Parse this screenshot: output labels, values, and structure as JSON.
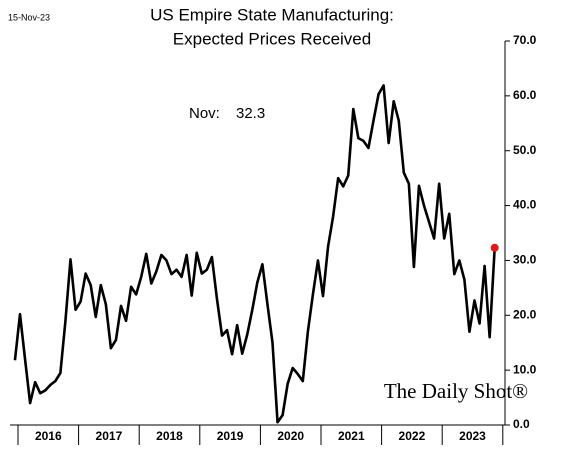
{
  "chart_data": {
    "type": "line",
    "title": "US Empire State Manufacturing:",
    "subtitle": "Expected Prices Received",
    "date_label": "15-Nov-23",
    "watermark": "The Daily Shot®",
    "annotation": {
      "text": "Nov:",
      "value": 32.3
    },
    "x": [
      "2015-12",
      "2016-01",
      "2016-02",
      "2016-03",
      "2016-04",
      "2016-05",
      "2016-06",
      "2016-07",
      "2016-08",
      "2016-09",
      "2016-10",
      "2016-11",
      "2016-12",
      "2017-01",
      "2017-02",
      "2017-03",
      "2017-04",
      "2017-05",
      "2017-06",
      "2017-07",
      "2017-08",
      "2017-09",
      "2017-10",
      "2017-11",
      "2017-12",
      "2018-01",
      "2018-02",
      "2018-03",
      "2018-04",
      "2018-05",
      "2018-06",
      "2018-07",
      "2018-08",
      "2018-09",
      "2018-10",
      "2018-11",
      "2018-12",
      "2019-01",
      "2019-02",
      "2019-03",
      "2019-04",
      "2019-05",
      "2019-06",
      "2019-07",
      "2019-08",
      "2019-09",
      "2019-10",
      "2019-11",
      "2019-12",
      "2020-01",
      "2020-02",
      "2020-03",
      "2020-04",
      "2020-05",
      "2020-06",
      "2020-07",
      "2020-08",
      "2020-09",
      "2020-10",
      "2020-11",
      "2020-12",
      "2021-01",
      "2021-02",
      "2021-03",
      "2021-04",
      "2021-05",
      "2021-06",
      "2021-07",
      "2021-08",
      "2021-09",
      "2021-10",
      "2021-11",
      "2021-12",
      "2022-01",
      "2022-02",
      "2022-03",
      "2022-04",
      "2022-05",
      "2022-06",
      "2022-07",
      "2022-08",
      "2022-09",
      "2022-10",
      "2022-11",
      "2022-12",
      "2023-01",
      "2023-02",
      "2023-03",
      "2023-04",
      "2023-05",
      "2023-06",
      "2023-07",
      "2023-08",
      "2023-09",
      "2023-10",
      "2023-11"
    ],
    "series": [
      {
        "name": "Expected Prices Received",
        "color": "#000000",
        "highlight_color": "#e8161b",
        "values": [
          11.8,
          20.2,
          12,
          4.0,
          7.8,
          5.8,
          6.3,
          7.3,
          8.0,
          9.5,
          19,
          30.2,
          21,
          22.5,
          27.6,
          25.5,
          19.7,
          25.5,
          22,
          14,
          15.5,
          21.7,
          19,
          25.2,
          23.8,
          27,
          31.2,
          25.8,
          28,
          31,
          30,
          27.5,
          28.3,
          27,
          31,
          23.6,
          31.4,
          27.6,
          28.3,
          30.6,
          23,
          16.3,
          17.3,
          12.9,
          18.2,
          13,
          16.5,
          21,
          26,
          29.3,
          22,
          15,
          0.5,
          1.8,
          7.5,
          10.4,
          9.3,
          8,
          17,
          23.8,
          30,
          23.5,
          32.5,
          38,
          45,
          43.5,
          45.5,
          57.6,
          52.3,
          51.8,
          50.5,
          55.5,
          60.3,
          61.9,
          51.4,
          59,
          55.5,
          46,
          44,
          28.8,
          43.6,
          40,
          37,
          34,
          44,
          34,
          38.5,
          27.5,
          30,
          26.5,
          17,
          22.7,
          18.5,
          29,
          16,
          32.3
        ]
      }
    ],
    "x_tick_labels": [
      "2016",
      "2017",
      "2018",
      "2019",
      "2020",
      "2021",
      "2022",
      "2023"
    ],
    "ylim": [
      0,
      70
    ],
    "yticks": [
      {
        "value": 0,
        "label": "0.0"
      },
      {
        "value": 10,
        "label": "10.0"
      },
      {
        "value": 20,
        "label": "20.0"
      },
      {
        "value": 30,
        "label": "30.0"
      },
      {
        "value": 40,
        "label": "40.0"
      },
      {
        "value": 50,
        "label": "50.0"
      },
      {
        "value": 60,
        "label": "60.0"
      },
      {
        "value": 70,
        "label": "70.0"
      }
    ],
    "y_axis_side": "right"
  }
}
